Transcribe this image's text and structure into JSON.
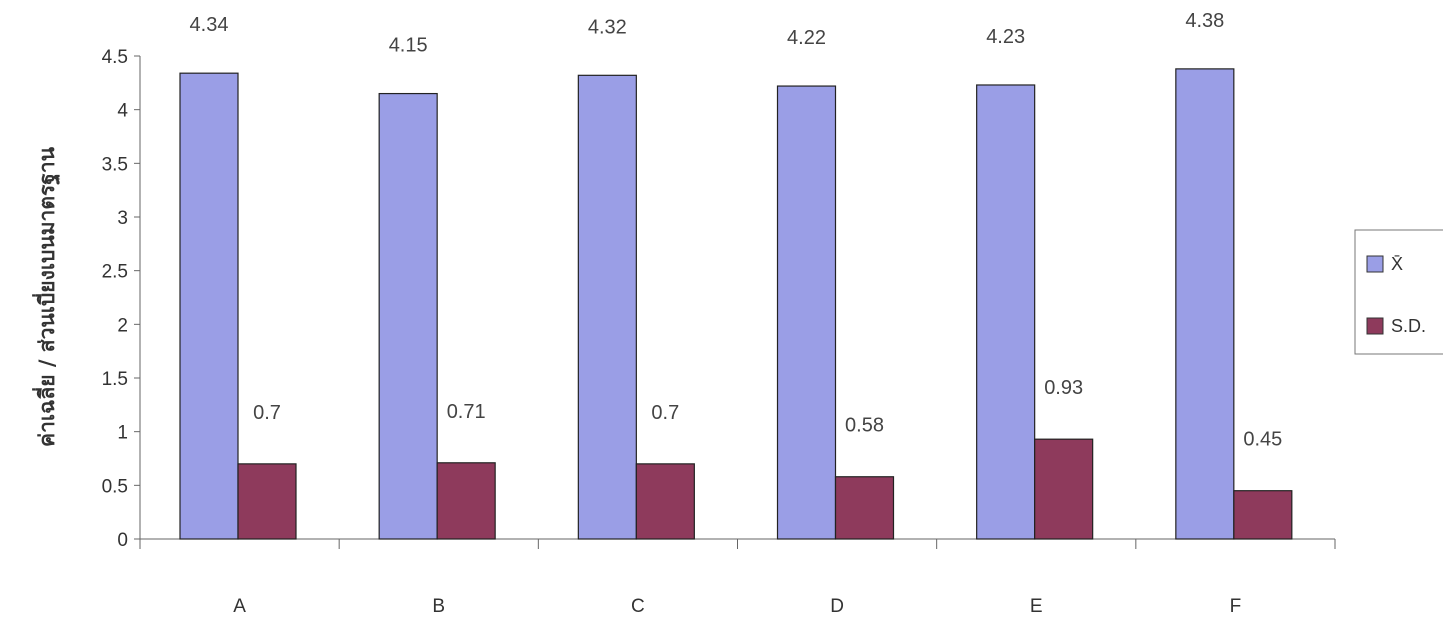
{
  "chart_data": {
    "type": "bar",
    "title": "",
    "xlabel": "",
    "ylabel": "ค่าเฉลี่ย / ส่วนเบี่ยงเบนมาตรฐาน",
    "categories": [
      "A",
      "B",
      "C",
      "D",
      "E",
      "F"
    ],
    "series": [
      {
        "name": "X̄",
        "values": [
          4.34,
          4.15,
          4.32,
          4.22,
          4.23,
          4.38
        ],
        "color": "#9a9ee6"
      },
      {
        "name": "S.D.",
        "values": [
          0.7,
          0.71,
          0.7,
          0.58,
          0.93,
          0.45
        ],
        "color": "#8e3a5c"
      }
    ],
    "ylim": [
      0,
      4.5
    ],
    "yticks": [
      "0",
      "0.5",
      "1",
      "1.5",
      "2",
      "2.5",
      "3",
      "3.5",
      "4",
      "4.5"
    ],
    "grid": false,
    "legend_position": "right",
    "data_labels": true
  }
}
